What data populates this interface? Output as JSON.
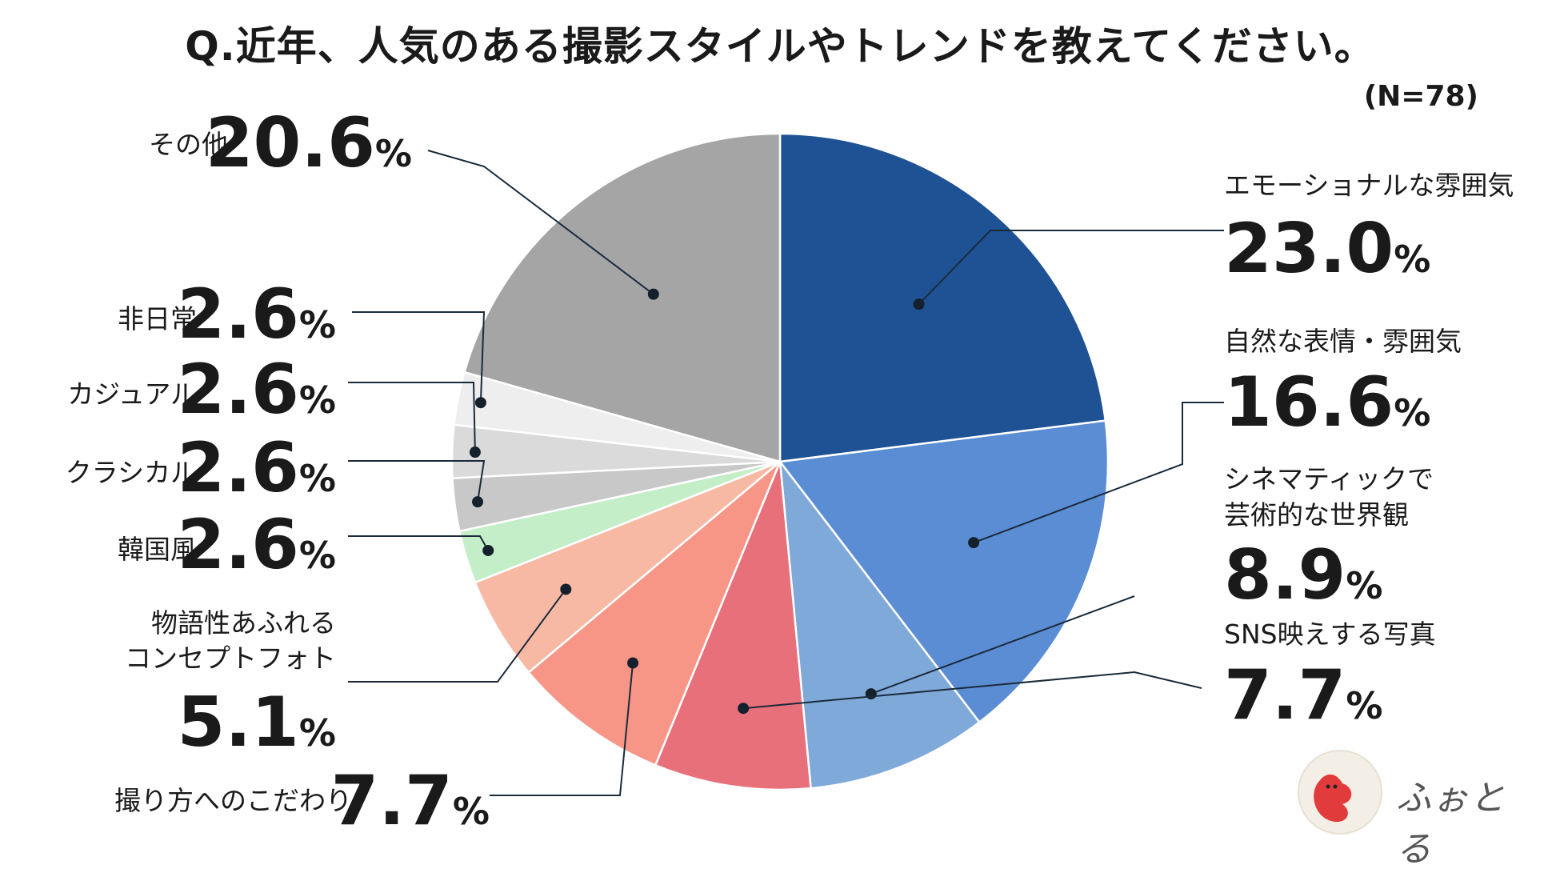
{
  "title": "Q.近年、人気のある撮影スタイルやトレンドを教えてください。",
  "sample_size": "(N=78)",
  "logo_text": "ふぉとる",
  "chart_data": {
    "type": "pie",
    "title": "Q.近年、人気のある撮影スタイルやトレンドを教えてください。",
    "unit": "%",
    "slices": [
      {
        "label": "エモーショナルな雰囲気",
        "value": 23.0,
        "value_label": "23.0",
        "color": "#1f5294"
      },
      {
        "label": "自然な表情・雰囲気",
        "value": 16.6,
        "value_label": "16.6",
        "color": "#5b8dd4"
      },
      {
        "label": "シネマティックで芸術的な世界観",
        "value": 8.9,
        "value_label": "8.9",
        "color": "#7fa9d8"
      },
      {
        "label": "SNS映えする写真",
        "value": 7.7,
        "value_label": "7.7",
        "color": "#e8707a"
      },
      {
        "label": "撮り方へのこだわり",
        "value": 7.7,
        "value_label": "7.7",
        "color": "#f79687"
      },
      {
        "label": "物語性あふれるコンセプトフォト",
        "value": 5.1,
        "value_label": "5.1",
        "color": "#f7b9a4"
      },
      {
        "label": "韓国風",
        "value": 2.6,
        "value_label": "2.6",
        "color": "#c4eec8"
      },
      {
        "label": "クラシカル",
        "value": 2.6,
        "value_label": "2.6",
        "color": "#c8c8c8"
      },
      {
        "label": "カジュアル",
        "value": 2.6,
        "value_label": "2.6",
        "color": "#dadada"
      },
      {
        "label": "非日常",
        "value": 2.6,
        "value_label": "2.6",
        "color": "#eeeeee"
      },
      {
        "label": "その他",
        "value": 20.6,
        "value_label": "20.6",
        "color": "#a5a5a5"
      }
    ]
  }
}
